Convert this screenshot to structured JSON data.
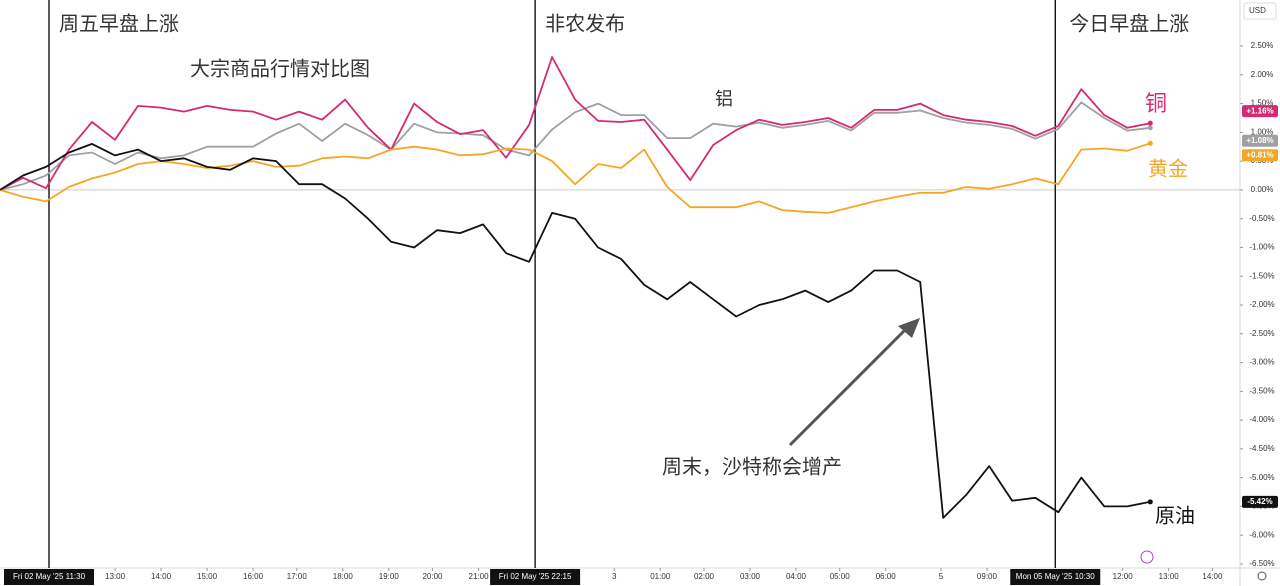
{
  "chart_data": {
    "type": "line",
    "title": "大宗商品行情对比图",
    "currency": "USD",
    "annotations": [
      {
        "text": "周五早盘上涨",
        "x": 2.13
      },
      {
        "text": "非农发布",
        "x": 23.26
      },
      {
        "text": "今日早盘上涨",
        "x": 45.87
      },
      {
        "text": "周末，沙特称会增产"
      }
    ],
    "markers": [
      {
        "x": 2.13,
        "label": "Fri 02 May '25  11:30"
      },
      {
        "x": 23.26,
        "label": "Fri 02 May '25  22:15"
      },
      {
        "x": 45.87,
        "label": "Mon 05 May '25  10:30"
      }
    ],
    "x": [
      0,
      1,
      2,
      3,
      4,
      5,
      6,
      7,
      8,
      9,
      10,
      11,
      12,
      13,
      14,
      15,
      16,
      17,
      18,
      19,
      20,
      21,
      22,
      23,
      24,
      25,
      26,
      27,
      28,
      29,
      30,
      31,
      32,
      33,
      34,
      35,
      36,
      37,
      38,
      39,
      40,
      41,
      42,
      43,
      44,
      45,
      46,
      47,
      48,
      49,
      50
    ],
    "xlim": [
      0,
      53.9
    ],
    "xticks": [
      {
        "value": 5.0,
        "label": "13:00"
      },
      {
        "value": 7.0,
        "label": "14:00"
      },
      {
        "value": 9.0,
        "label": "15:00"
      },
      {
        "value": 11.0,
        "label": "16:00"
      },
      {
        "value": 12.9,
        "label": "17:00"
      },
      {
        "value": 14.9,
        "label": "18:00"
      },
      {
        "value": 16.9,
        "label": "19:00"
      },
      {
        "value": 18.8,
        "label": "20:00"
      },
      {
        "value": 20.8,
        "label": "21:00"
      },
      {
        "value": 26.7,
        "label": "3"
      },
      {
        "value": 28.7,
        "label": "01:00"
      },
      {
        "value": 30.6,
        "label": "02:00"
      },
      {
        "value": 32.6,
        "label": "03:00"
      },
      {
        "value": 34.6,
        "label": "04:00"
      },
      {
        "value": 36.5,
        "label": "05:00"
      },
      {
        "value": 38.5,
        "label": "06:00"
      },
      {
        "value": 40.9,
        "label": "5"
      },
      {
        "value": 42.9,
        "label": "09:00"
      },
      {
        "value": 48.8,
        "label": "12:00"
      },
      {
        "value": 50.8,
        "label": "13:00"
      },
      {
        "value": 52.7,
        "label": "14:00"
      }
    ],
    "ylim": [
      -6.57,
      3.3
    ],
    "yticks": [
      {
        "value": 2.5,
        "label": "2.50%"
      },
      {
        "value": 2.0,
        "label": "2.00%"
      },
      {
        "value": 1.5,
        "label": "1.50%"
      },
      {
        "value": 1.0,
        "label": "1.00%"
      },
      {
        "value": 0.5,
        "label": "0.50%"
      },
      {
        "value": 0,
        "label": "0.00%"
      },
      {
        "value": -0.5,
        "label": "-0.50%"
      },
      {
        "value": -1.0,
        "label": "-1.00%"
      },
      {
        "value": -1.5,
        "label": "-1.50%"
      },
      {
        "value": -2.0,
        "label": "-2.00%"
      },
      {
        "value": -2.5,
        "label": "-2.50%"
      },
      {
        "value": -3.0,
        "label": "-3.00%"
      },
      {
        "value": -3.5,
        "label": "-3.50%"
      },
      {
        "value": -4.0,
        "label": "-4.00%"
      },
      {
        "value": -4.5,
        "label": "-4.50%"
      },
      {
        "value": -5.0,
        "label": "-5.00%"
      },
      {
        "value": -5.5,
        "label": "-5.50%"
      },
      {
        "value": -6.0,
        "label": "-6.00%"
      },
      {
        "value": -6.5,
        "label": "-6.50%"
      }
    ],
    "series": [
      {
        "name": "铝",
        "color": "#a0a0a0",
        "end_label": "+1.08%",
        "values": [
          0,
          0.1,
          0.25,
          0.6,
          0.65,
          0.45,
          0.65,
          0.55,
          0.6,
          0.75,
          0.75,
          0.75,
          0.98,
          1.15,
          0.85,
          1.15,
          0.95,
          0.7,
          1.15,
          1.0,
          0.98,
          0.95,
          0.7,
          0.6,
          1.05,
          1.35,
          1.5,
          1.3,
          1.3,
          0.9,
          0.9,
          1.15,
          1.1,
          1.17,
          1.08,
          1.13,
          1.2,
          1.03,
          1.34,
          1.34,
          1.38,
          1.25,
          1.17,
          1.13,
          1.06,
          0.89,
          1.06,
          1.52,
          1.25,
          1.03,
          1.08
        ]
      },
      {
        "name": "铜",
        "color": "#d42a74",
        "end_label": "+1.16%",
        "values": [
          0,
          0.21,
          0.03,
          0.7,
          1.18,
          0.87,
          1.46,
          1.43,
          1.36,
          1.46,
          1.39,
          1.36,
          1.22,
          1.36,
          1.22,
          1.57,
          1.08,
          0.7,
          1.5,
          1.18,
          0.97,
          1.04,
          0.56,
          1.13,
          2.31,
          1.57,
          1.2,
          1.18,
          1.22,
          0.7,
          0.17,
          0.78,
          1.04,
          1.22,
          1.13,
          1.18,
          1.25,
          1.08,
          1.39,
          1.39,
          1.5,
          1.3,
          1.22,
          1.18,
          1.11,
          0.94,
          1.11,
          1.75,
          1.3,
          1.08,
          1.16
        ]
      },
      {
        "name": "黄金",
        "color": "#f5a623",
        "end_label": "+0.81%",
        "values": [
          0,
          -0.12,
          -0.2,
          0.05,
          0.2,
          0.3,
          0.45,
          0.5,
          0.45,
          0.38,
          0.42,
          0.5,
          0.4,
          0.42,
          0.55,
          0.58,
          0.55,
          0.7,
          0.75,
          0.7,
          0.6,
          0.62,
          0.72,
          0.7,
          0.5,
          0.1,
          0.45,
          0.38,
          0.7,
          0.05,
          -0.3,
          -0.3,
          -0.3,
          -0.2,
          -0.35,
          -0.38,
          -0.4,
          -0.3,
          -0.2,
          -0.12,
          -0.05,
          -0.05,
          0.05,
          0.02,
          0.1,
          0.2,
          0.1,
          0.7,
          0.72,
          0.68,
          0.81
        ]
      },
      {
        "name": "原油",
        "color": "#111111",
        "end_label": "-5.42%",
        "values": [
          0,
          0.25,
          0.4,
          0.65,
          0.8,
          0.6,
          0.7,
          0.5,
          0.55,
          0.4,
          0.35,
          0.55,
          0.5,
          0.1,
          0.1,
          -0.15,
          -0.5,
          -0.9,
          -1.0,
          -0.7,
          -0.75,
          -0.6,
          -1.1,
          -1.25,
          -0.4,
          -0.5,
          -1.0,
          -1.2,
          -1.65,
          -1.9,
          -1.6,
          -1.9,
          -2.2,
          -2.0,
          -1.9,
          -1.75,
          -1.95,
          -1.75,
          -1.4,
          -1.4,
          -1.6,
          -5.7,
          -5.3,
          -4.8,
          -5.4,
          -5.35,
          -5.6,
          -5.0,
          -5.5,
          -5.5,
          -5.42
        ]
      }
    ]
  }
}
